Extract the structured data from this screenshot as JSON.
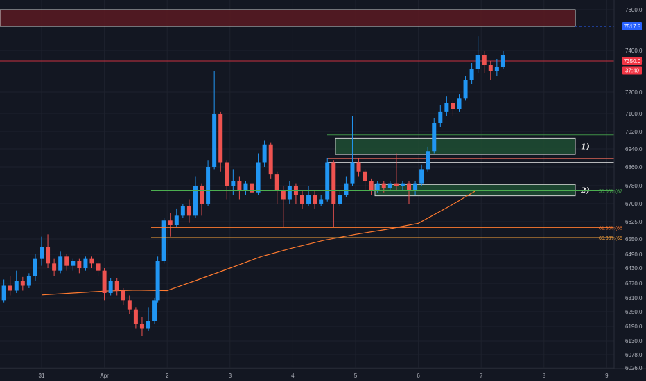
{
  "chart_data": {
    "type": "candlestick",
    "y_axis": {
      "range": [
        6026,
        7650
      ],
      "tick_labels": [
        "7600.0",
        "7400.0",
        "7350.0",
        "7200.0",
        "7100.0",
        "7020.0",
        "6940.0",
        "6860.0",
        "6780.0",
        "6700.0",
        "6625.0",
        "6550.0",
        "6490.0",
        "6430.0",
        "6370.0",
        "6310.0",
        "6250.0",
        "6190.0",
        "6130.0",
        "6078.0",
        "6026.0"
      ]
    },
    "x_axis": {
      "tick_labels": [
        "31",
        "Apr",
        "2",
        "3",
        "4",
        "5",
        "6",
        "7",
        "8",
        "9"
      ]
    },
    "price_badges": [
      {
        "label": "7517.5",
        "value": 7517.5,
        "color": "#2962ff"
      },
      {
        "label": "7350.0",
        "value": 7350,
        "color": "#f23645"
      },
      {
        "label": "37:40",
        "value": 7305,
        "color": "#f23645"
      }
    ],
    "zones": [
      {
        "label": "",
        "top": 7600,
        "bottom": 7517.5,
        "color": "#5a1a22",
        "border": "#d0d0d0"
      },
      {
        "label": "1)",
        "top": 6990,
        "bottom": 6915,
        "color": "#1e4d33",
        "border": "#d0d0d0"
      },
      {
        "label": "2)",
        "top": 6785,
        "bottom": 6735,
        "color": "#1e4d33",
        "border": "#d0d0d0"
      }
    ],
    "fib_levels": [
      {
        "label": "50.00%(67",
        "value": 6757,
        "color": "#4caf50"
      },
      {
        "label": "61.80%(66",
        "value": 6600,
        "color": "#ff7a2f"
      },
      {
        "label": "65.00%(65",
        "value": 6556,
        "color": "#ffa53a"
      }
    ],
    "horizontal_lines": [
      {
        "value": 7350,
        "color": "#f23645"
      },
      {
        "value": 7005,
        "color": "#4caf50"
      },
      {
        "value": 6898,
        "color": "#e86a5a"
      },
      {
        "value": 6880,
        "color": "#e0e0e0"
      }
    ],
    "moving_average": {
      "color": "#ff7a2f",
      "points": [
        [
          0,
          6322
        ],
        [
          0.5,
          6330
        ],
        [
          1,
          6338
        ],
        [
          1.5,
          6342
        ],
        [
          2,
          6340
        ],
        [
          2.5,
          6385
        ],
        [
          3,
          6430
        ],
        [
          3.5,
          6480
        ],
        [
          4,
          6515
        ],
        [
          4.5,
          6545
        ],
        [
          5,
          6570
        ],
        [
          5.5,
          6592
        ],
        [
          6,
          6618
        ],
        [
          6.5,
          6690
        ],
        [
          6.9,
          6755
        ]
      ]
    },
    "candles": [
      [
        -0.7,
        6260,
        6300,
        6240,
        6310
      ],
      [
        -0.6,
        6300,
        6360,
        6290,
        6385
      ],
      [
        -0.5,
        6360,
        6340,
        6320,
        6400
      ],
      [
        -0.4,
        6340,
        6380,
        6330,
        6420
      ],
      [
        -0.3,
        6380,
        6360,
        6340,
        6395
      ],
      [
        -0.2,
        6360,
        6400,
        6350,
        6410
      ],
      [
        -0.1,
        6400,
        6470,
        6380,
        6490
      ],
      [
        0.0,
        6470,
        6520,
        6440,
        6560
      ],
      [
        0.1,
        6520,
        6450,
        6430,
        6570
      ],
      [
        0.2,
        6450,
        6420,
        6400,
        6470
      ],
      [
        0.3,
        6420,
        6480,
        6410,
        6500
      ],
      [
        0.4,
        6480,
        6440,
        6420,
        6490
      ],
      [
        0.5,
        6440,
        6460,
        6420,
        6470
      ],
      [
        0.6,
        6460,
        6430,
        6410,
        6470
      ],
      [
        0.7,
        6430,
        6470,
        6420,
        6480
      ],
      [
        0.8,
        6470,
        6450,
        6430,
        6480
      ],
      [
        0.9,
        6450,
        6420,
        6400,
        6460
      ],
      [
        1.0,
        6420,
        6330,
        6300,
        6430
      ],
      [
        1.1,
        6330,
        6380,
        6320,
        6390
      ],
      [
        1.2,
        6380,
        6340,
        6320,
        6390
      ],
      [
        1.3,
        6340,
        6300,
        6280,
        6350
      ],
      [
        1.4,
        6300,
        6260,
        6240,
        6320
      ],
      [
        1.5,
        6260,
        6200,
        6180,
        6270
      ],
      [
        1.6,
        6200,
        6180,
        6150,
        6230
      ],
      [
        1.7,
        6180,
        6210,
        6170,
        6270
      ],
      [
        1.8,
        6210,
        6300,
        6200,
        6310
      ],
      [
        1.85,
        6300,
        6460,
        6290,
        6480
      ],
      [
        1.95,
        6460,
        6630,
        6450,
        6640
      ],
      [
        2.05,
        6630,
        6610,
        6560,
        6660
      ],
      [
        2.15,
        6610,
        6650,
        6600,
        6680
      ],
      [
        2.25,
        6650,
        6690,
        6640,
        6700
      ],
      [
        2.35,
        6690,
        6650,
        6620,
        6720
      ],
      [
        2.45,
        6650,
        6780,
        6640,
        6820
      ],
      [
        2.55,
        6780,
        6700,
        6650,
        6790
      ],
      [
        2.65,
        6700,
        6860,
        6690,
        6890
      ],
      [
        2.75,
        6860,
        7100,
        6850,
        7300
      ],
      [
        2.85,
        7100,
        6880,
        6840,
        7110
      ],
      [
        2.95,
        6880,
        6780,
        6720,
        6890
      ],
      [
        3.05,
        6780,
        6800,
        6740,
        6850
      ],
      [
        3.15,
        6800,
        6760,
        6720,
        6820
      ],
      [
        3.25,
        6760,
        6790,
        6740,
        6800
      ],
      [
        3.35,
        6790,
        6750,
        6710,
        6800
      ],
      [
        3.45,
        6750,
        6880,
        6740,
        6920
      ],
      [
        3.55,
        6880,
        6960,
        6860,
        6980
      ],
      [
        3.65,
        6960,
        6830,
        6810,
        6970
      ],
      [
        3.75,
        6830,
        6760,
        6700,
        6840
      ],
      [
        3.85,
        6760,
        6720,
        6600,
        6780
      ],
      [
        3.95,
        6720,
        6780,
        6700,
        6800
      ],
      [
        4.05,
        6780,
        6740,
        6700,
        6790
      ],
      [
        4.15,
        6740,
        6700,
        6680,
        6760
      ],
      [
        4.25,
        6700,
        6740,
        6690,
        6780
      ],
      [
        4.35,
        6740,
        6700,
        6680,
        6760
      ],
      [
        4.45,
        6700,
        6720,
        6690,
        6740
      ],
      [
        4.55,
        6720,
        6880,
        6710,
        6900
      ],
      [
        4.65,
        6880,
        6700,
        6600,
        6890
      ],
      [
        4.75,
        6700,
        6740,
        6690,
        6760
      ],
      [
        4.85,
        6740,
        6790,
        6730,
        6820
      ],
      [
        4.95,
        6790,
        6880,
        6780,
        7090
      ],
      [
        5.05,
        6880,
        6840,
        6820,
        6900
      ],
      [
        5.15,
        6840,
        6800,
        6760,
        6850
      ],
      [
        5.25,
        6800,
        6760,
        6740,
        6810
      ],
      [
        5.35,
        6760,
        6790,
        6750,
        6800
      ],
      [
        5.45,
        6790,
        6770,
        6750,
        6800
      ],
      [
        5.55,
        6770,
        6790,
        6760,
        6800
      ],
      [
        5.65,
        6790,
        6780,
        6760,
        6920
      ],
      [
        5.75,
        6780,
        6790,
        6760,
        6800
      ],
      [
        5.85,
        6790,
        6760,
        6700,
        6800
      ],
      [
        5.95,
        6760,
        6790,
        6740,
        6800
      ],
      [
        6.05,
        6790,
        6850,
        6780,
        6870
      ],
      [
        6.15,
        6850,
        6930,
        6840,
        6950
      ],
      [
        6.25,
        6930,
        7060,
        6920,
        7080
      ],
      [
        6.35,
        7060,
        7110,
        7040,
        7140
      ],
      [
        6.45,
        7110,
        7150,
        7090,
        7180
      ],
      [
        6.55,
        7150,
        7120,
        7090,
        7160
      ],
      [
        6.65,
        7120,
        7170,
        7110,
        7190
      ],
      [
        6.75,
        7170,
        7260,
        7160,
        7280
      ],
      [
        6.85,
        7260,
        7310,
        7240,
        7340
      ],
      [
        6.95,
        7310,
        7380,
        7290,
        7470
      ],
      [
        7.05,
        7380,
        7330,
        7290,
        7400
      ],
      [
        7.15,
        7330,
        7300,
        7260,
        7350
      ],
      [
        7.25,
        7300,
        7320,
        7280,
        7360
      ],
      [
        7.35,
        7320,
        7380,
        7310,
        7400
      ]
    ]
  }
}
